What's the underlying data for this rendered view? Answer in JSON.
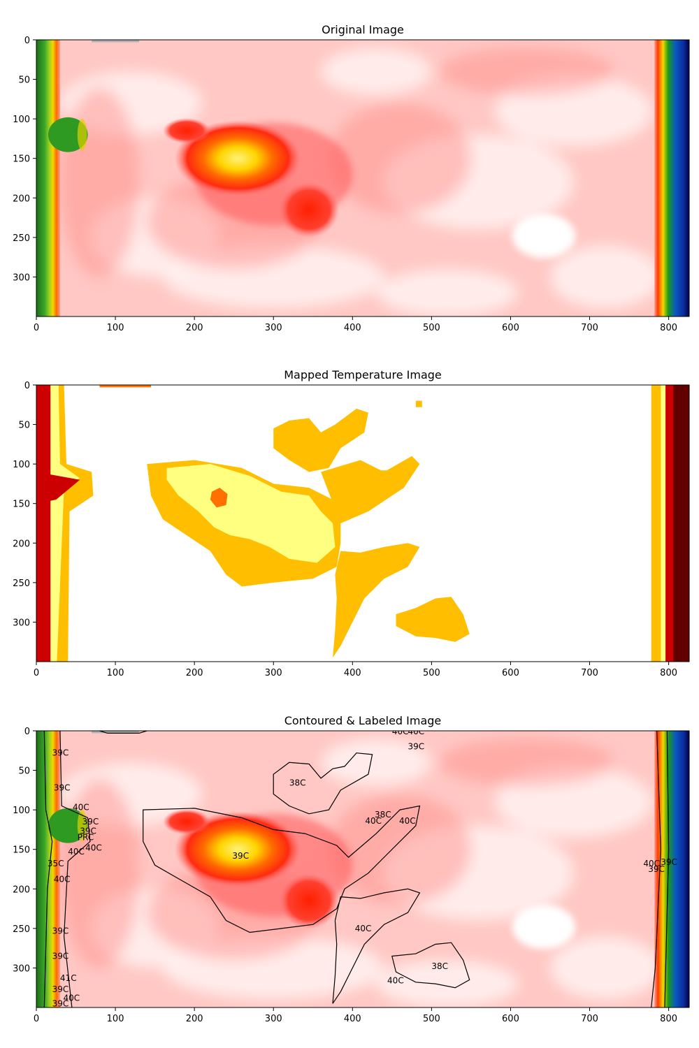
{
  "chart_data": [
    {
      "type": "heatmap",
      "title": "Original Image",
      "xlim": [
        0,
        826
      ],
      "ylim": [
        350,
        0
      ],
      "xticks": [
        0,
        100,
        200,
        300,
        400,
        500,
        600,
        700,
        800
      ],
      "yticks": [
        0,
        50,
        100,
        150,
        200,
        250,
        300
      ],
      "grid": false,
      "legend": "none",
      "colormap": "thermal",
      "features": [
        {
          "kind": "edge-band-left",
          "x_range": [
            0,
            30
          ],
          "colors": [
            "#1f7a1f",
            "#5cb32a",
            "#d8d000",
            "#ff3a00"
          ]
        },
        {
          "kind": "hot-spot",
          "center": [
            270,
            160
          ],
          "colors": [
            "#ff2a10",
            "#ffe000"
          ]
        },
        {
          "kind": "cool-patch",
          "center": [
            640,
            250
          ],
          "color": "#ffffff"
        },
        {
          "kind": "edge-band-right",
          "x_range": [
            785,
            826
          ],
          "colors": [
            "#ff3a00",
            "#d8d000",
            "#1a8a1a",
            "#0a3ab0",
            "#000050"
          ]
        }
      ]
    },
    {
      "type": "heatmap",
      "title": "Mapped Temperature Image",
      "xlim": [
        0,
        826
      ],
      "ylim": [
        350,
        0
      ],
      "xticks": [
        0,
        100,
        200,
        300,
        400,
        500,
        600,
        700,
        800
      ],
      "yticks": [
        0,
        50,
        100,
        150,
        200,
        250,
        300
      ],
      "grid": false,
      "legend": "none",
      "palette": [
        "#ffffff",
        "#ffff80",
        "#ffbf00",
        "#ff7000",
        "#cc0000",
        "#600000"
      ],
      "regions": [
        {
          "level": "#ffbf00",
          "area": "blob A",
          "approx_extent": {
            "x": [
              140,
              380
            ],
            "y": [
              95,
              250
            ]
          }
        },
        {
          "level": "#ffff80",
          "area": "blob A core",
          "approx_extent": {
            "x": [
              150,
              340
            ],
            "y": [
              105,
              210
            ]
          }
        },
        {
          "level": "#ff7000",
          "area": "hot spot",
          "approx_extent": {
            "x": [
              222,
              240
            ],
            "y": [
              135,
              155
            ]
          }
        },
        {
          "level": "#ffbf00",
          "area": "blob B",
          "approx_extent": {
            "x": [
              290,
              385
            ],
            "y": [
              25,
              110
            ]
          }
        },
        {
          "level": "#ffbf00",
          "area": "blob C",
          "approx_extent": {
            "x": [
              375,
              485
            ],
            "y": [
              205,
              340
            ]
          }
        },
        {
          "level": "#ffbf00",
          "area": "blob D",
          "approx_extent": {
            "x": [
              450,
              545
            ],
            "y": [
              268,
              335
            ]
          }
        }
      ]
    },
    {
      "type": "heatmap",
      "title": "Contoured & Labeled Image",
      "xlim": [
        0,
        826
      ],
      "ylim": [
        350,
        0
      ],
      "xticks": [
        0,
        100,
        200,
        300,
        400,
        500,
        600,
        700,
        800
      ],
      "yticks": [
        0,
        50,
        100,
        150,
        200,
        250,
        300
      ],
      "grid": false,
      "legend": "none",
      "annotations": [
        {
          "text": "39C",
          "x": 20,
          "y": 28
        },
        {
          "text": "39C",
          "x": 22,
          "y": 72
        },
        {
          "text": "40C",
          "x": 46,
          "y": 97
        },
        {
          "text": "39C",
          "x": 58,
          "y": 115
        },
        {
          "text": "39C",
          "x": 55,
          "y": 127
        },
        {
          "text": "PRC",
          "x": 52,
          "y": 135
        },
        {
          "text": "40C",
          "x": 62,
          "y": 148
        },
        {
          "text": "40C",
          "x": 40,
          "y": 153
        },
        {
          "text": "35C",
          "x": 14,
          "y": 168
        },
        {
          "text": "40C",
          "x": 22,
          "y": 188
        },
        {
          "text": "39C",
          "x": 20,
          "y": 253
        },
        {
          "text": "39C",
          "x": 20,
          "y": 285
        },
        {
          "text": "41C",
          "x": 30,
          "y": 313
        },
        {
          "text": "39C",
          "x": 20,
          "y": 327
        },
        {
          "text": "40C",
          "x": 34,
          "y": 338
        },
        {
          "text": "39C",
          "x": 20,
          "y": 345
        },
        {
          "text": "38C",
          "x": 320,
          "y": 66
        },
        {
          "text": "39C",
          "x": 248,
          "y": 158
        },
        {
          "text": "38C",
          "x": 428,
          "y": 106
        },
        {
          "text": "40C",
          "x": 416,
          "y": 114
        },
        {
          "text": "40C",
          "x": 459,
          "y": 114
        },
        {
          "text": "40C",
          "x": 450,
          "y": 1
        },
        {
          "text": "40C",
          "x": 470,
          "y": 1
        },
        {
          "text": "39C",
          "x": 470,
          "y": 20
        },
        {
          "text": "40C",
          "x": 403,
          "y": 250
        },
        {
          "text": "38C",
          "x": 500,
          "y": 298
        },
        {
          "text": "40C",
          "x": 444,
          "y": 316
        },
        {
          "text": "40C",
          "x": 768,
          "y": 168
        },
        {
          "text": "39C",
          "x": 774,
          "y": 175
        },
        {
          "text": "39C",
          "x": 790,
          "y": 166
        }
      ]
    }
  ]
}
